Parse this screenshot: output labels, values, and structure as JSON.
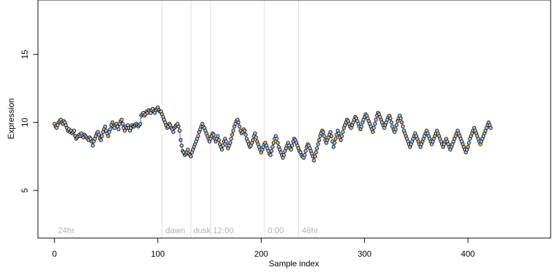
{
  "chart_data": {
    "type": "scatter",
    "title": "",
    "xlabel": "Sample index",
    "ylabel": "Expression",
    "xlim": [
      -16,
      480
    ],
    "ylim": [
      1.5,
      19
    ],
    "x_ticks": [
      "0",
      "100",
      "200",
      "300",
      "400"
    ],
    "x_tick_values": [
      0,
      100,
      200,
      300,
      400
    ],
    "y_ticks": [
      "5",
      "10",
      "15"
    ],
    "y_tick_values": [
      5,
      10,
      15
    ],
    "grid": false,
    "legend": "none",
    "colors": {
      "point_default": "#a8c8f0",
      "point_highlight": "#f0b060",
      "segment_default": "#7aa0d8",
      "segment_highlight": "#e8a040",
      "vline": "#dcdcdc",
      "region_label": "#b3b3b3"
    },
    "region_lines": [
      104,
      132,
      151,
      203,
      236
    ],
    "region_labels": [
      {
        "text": "24hr",
        "x": 2
      },
      {
        "text": "dawn",
        "x": 106
      },
      {
        "text": "dusk",
        "x": 133
      },
      {
        "text": "12:00",
        "x": 152
      },
      {
        "text": "0:00",
        "x": 205
      },
      {
        "text": "48hr",
        "x": 238
      }
    ],
    "series": [
      {
        "values": [
          9.9,
          9.7,
          9.6,
          9.8,
          10.0,
          10.1,
          10.2,
          10.0,
          9.9,
          10.1,
          10.0,
          9.8,
          9.6,
          9.4,
          9.5,
          9.3,
          9.4,
          9.2,
          9.3,
          9.4,
          9.0,
          8.8,
          8.9,
          9.0,
          9.1,
          9.0,
          9.2,
          9.0,
          8.9,
          9.1,
          9.0,
          8.9,
          8.8,
          8.7,
          8.9,
          8.8,
          8.6,
          8.3,
          8.6,
          8.8,
          9.0,
          9.2,
          9.3,
          9.1,
          8.8,
          8.7,
          9.0,
          9.3,
          9.5,
          9.7,
          9.4,
          9.2,
          9.0,
          9.3,
          9.5,
          9.8,
          10.0,
          9.7,
          9.6,
          9.8,
          9.9,
          9.7,
          9.5,
          9.9,
          10.1,
          10.2,
          9.9,
          9.6,
          9.4,
          9.7,
          9.6,
          9.8,
          9.6,
          9.4,
          9.6,
          9.8,
          9.7,
          9.7,
          9.8,
          9.9,
          9.8,
          9.7,
          9.8,
          9.9,
          10.5,
          10.6,
          10.7,
          10.5,
          10.6,
          10.8,
          10.7,
          10.9,
          10.8,
          10.7,
          10.9,
          11.0,
          10.8,
          10.7,
          10.9,
          11.0,
          11.1,
          10.9,
          10.8,
          10.8,
          10.6,
          10.4,
          10.2,
          10.0,
          9.8,
          9.6,
          9.7,
          9.9,
          9.8,
          9.6,
          9.5,
          9.3,
          9.6,
          9.7,
          9.8,
          9.9,
          9.7,
          9.4,
          8.7,
          8.3,
          7.9,
          7.8,
          7.6,
          7.7,
          7.8,
          8.0,
          7.7,
          7.6,
          7.5,
          7.8,
          8.0,
          8.2,
          8.4,
          8.6,
          8.8,
          9.0,
          9.3,
          9.5,
          9.7,
          9.9,
          9.7,
          9.6,
          9.4,
          9.2,
          9.0,
          8.8,
          8.6,
          8.8,
          9.0,
          9.2,
          9.1,
          8.8,
          8.6,
          8.8,
          9.0,
          8.7,
          8.4,
          8.2,
          8.0,
          8.3,
          8.6,
          8.8,
          8.6,
          8.3,
          8.1,
          8.3,
          8.5,
          8.8,
          9.1,
          9.4,
          9.7,
          9.9,
          10.1,
          10.2,
          10.0,
          9.7,
          9.4,
          9.2,
          9.3,
          9.5,
          9.4,
          9.1,
          8.8,
          8.6,
          8.4,
          8.2,
          8.3,
          8.5,
          8.7,
          9.0,
          9.2,
          8.9,
          8.6,
          8.4,
          8.2,
          8.0,
          7.8,
          8.0,
          8.2,
          8.4,
          8.5,
          8.3,
          8.1,
          7.9,
          7.7,
          7.6,
          7.9,
          8.2,
          8.5,
          8.8,
          9.0,
          8.8,
          8.5,
          8.2,
          8.0,
          7.8,
          7.6,
          7.4,
          7.6,
          7.9,
          8.1,
          8.3,
          8.5,
          8.3,
          8.1,
          8.0,
          8.3,
          8.6,
          8.8,
          8.7,
          8.5,
          8.3,
          8.1,
          7.9,
          7.8,
          7.6,
          7.5,
          7.4,
          7.6,
          7.9,
          8.2,
          8.4,
          8.3,
          8.1,
          7.9,
          7.7,
          7.5,
          7.2,
          7.5,
          7.8,
          8.1,
          8.4,
          8.7,
          9.0,
          9.2,
          9.4,
          9.3,
          9.0,
          8.7,
          8.5,
          8.7,
          8.9,
          9.1,
          9.3,
          9.0,
          8.6,
          8.2,
          8.5,
          8.8,
          9.1,
          9.4,
          9.2,
          8.9,
          8.7,
          9.0,
          9.3,
          9.6,
          9.8,
          10.0,
          10.2,
          10.1,
          9.9,
          9.7,
          9.6,
          9.8,
          10.0,
          10.2,
          10.4,
          10.3,
          10.1,
          9.9,
          9.7,
          9.5,
          9.7,
          10.0,
          10.2,
          10.4,
          10.6,
          10.5,
          10.3,
          10.1,
          9.9,
          9.7,
          9.5,
          9.3,
          9.6,
          9.9,
          10.2,
          10.5,
          10.7,
          10.6,
          10.4,
          10.2,
          10.0,
          9.8,
          9.6,
          9.8,
          10.0,
          10.2,
          10.4,
          10.5,
          10.3,
          10.0,
          9.7,
          9.5,
          9.3,
          9.5,
          9.8,
          10.1,
          10.3,
          10.5,
          10.3,
          10.0,
          9.7,
          9.4,
          9.2,
          9.0,
          8.8,
          8.6,
          8.4,
          8.2,
          8.4,
          8.6,
          8.8,
          9.0,
          9.2,
          9.0,
          8.8,
          8.6,
          8.4,
          8.2,
          8.4,
          8.6,
          8.8,
          9.0,
          9.2,
          9.4,
          9.2,
          9.0,
          8.8,
          8.6,
          8.4,
          8.6,
          8.8,
          9.0,
          9.2,
          9.4,
          9.2,
          9.0,
          8.8,
          8.6,
          8.4,
          8.2,
          8.4,
          8.6,
          8.8,
          8.6,
          8.4,
          8.2,
          8.0,
          8.2,
          8.4,
          8.6,
          8.8,
          9.0,
          9.2,
          9.4,
          9.2,
          9.0,
          8.8,
          8.6,
          8.4,
          8.2,
          8.0,
          7.8,
          8.0,
          8.2,
          8.5,
          8.8,
          9.0,
          9.2,
          9.4,
          9.6,
          9.4,
          9.2,
          9.0,
          8.8,
          8.6,
          8.4,
          8.6,
          8.8,
          9.0,
          9.2,
          9.4,
          9.6,
          9.8,
          10.0,
          9.8,
          9.6
        ],
        "highlight_every": 4
      }
    ]
  }
}
